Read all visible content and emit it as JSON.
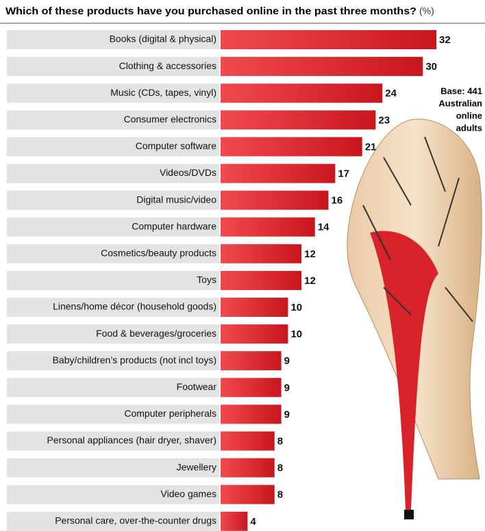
{
  "chart_data": {
    "type": "bar",
    "title": "Which of these products have you purchased online in the past three months?",
    "unit": "(%)",
    "annotation": [
      "Base: 441",
      "Australian",
      "online",
      "adults"
    ],
    "color": "#d8232a",
    "categories": [
      "Books (digital & physical)",
      "Clothing & accessories",
      "Music (CDs, tapes, vinyl)",
      "Consumer electronics",
      "Computer software",
      "Videos/DVDs",
      "Digital music/video",
      "Computer hardware",
      "Cosmetics/beauty products",
      "Toys",
      "Linens/home décor (household goods)",
      "Food & beverages/groceries",
      "Baby/children’s products (not incl toys)",
      "Footwear",
      "Computer peripherals",
      "Personal appliances (hair dryer, shaver)",
      "Jewellery",
      "Video games",
      "Personal care, over-the-counter drugs"
    ],
    "values": [
      32,
      30,
      24,
      23,
      21,
      17,
      16,
      14,
      12,
      12,
      10,
      10,
      9,
      9,
      9,
      8,
      8,
      8,
      4
    ]
  }
}
